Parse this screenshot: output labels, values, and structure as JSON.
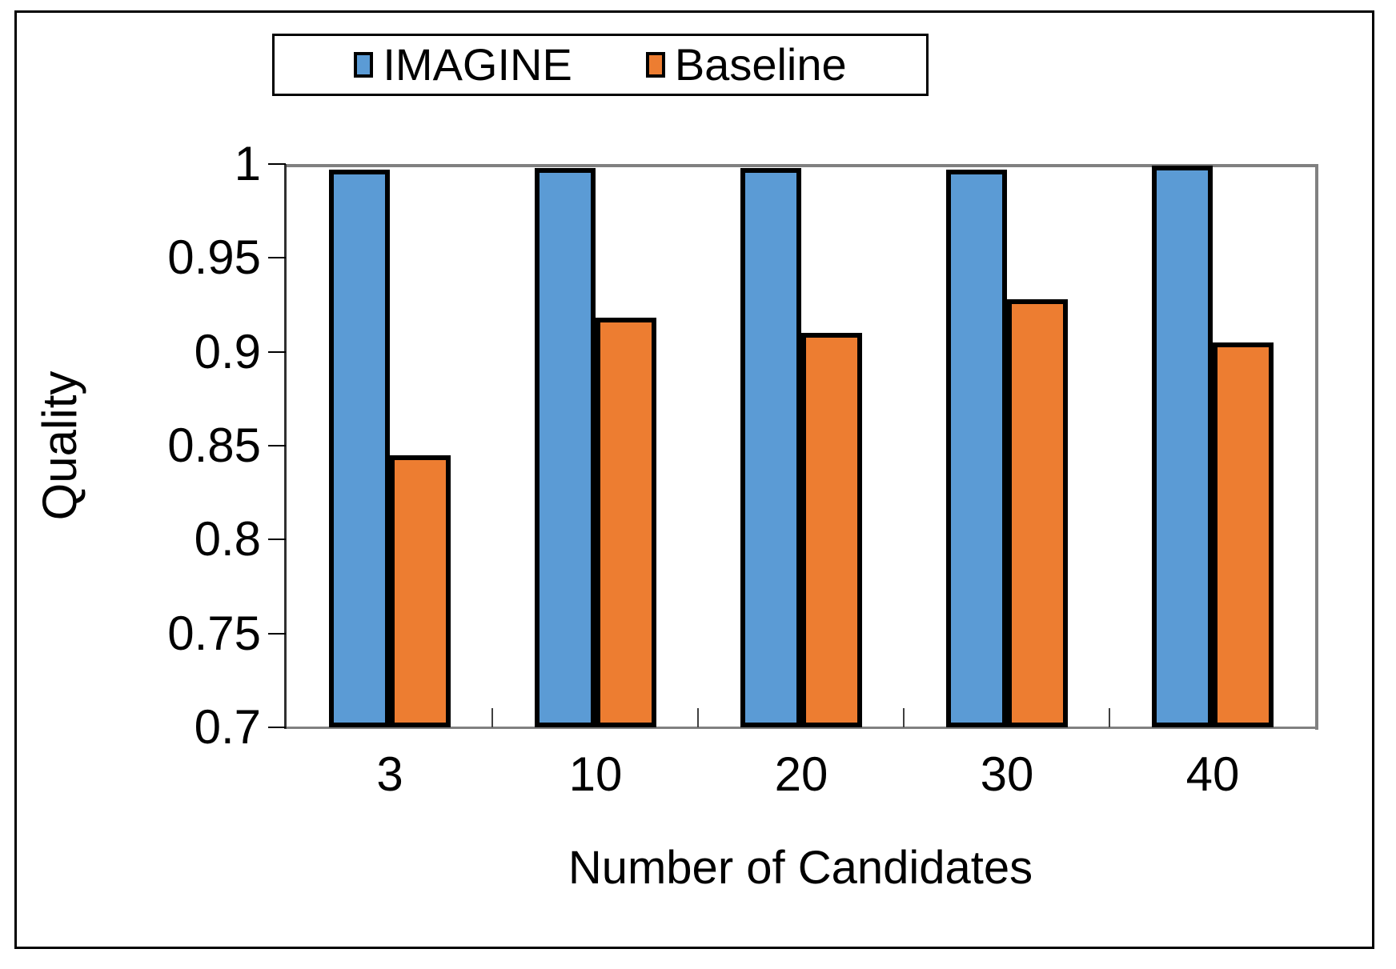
{
  "chart_data": {
    "type": "bar",
    "title": "",
    "categories": [
      "3",
      "10",
      "20",
      "30",
      "40"
    ],
    "series": [
      {
        "name": "IMAGINE",
        "color": "#5B9BD5",
        "values": [
          0.997,
          0.998,
          0.998,
          0.997,
          0.999
        ]
      },
      {
        "name": "Baseline",
        "color": "#ED7D31",
        "values": [
          0.845,
          0.918,
          0.91,
          0.928,
          0.905
        ]
      }
    ],
    "xlabel": "Number of Candidates",
    "ylabel": "Quality",
    "ylim": [
      0.7,
      1.0
    ],
    "ytick_values": [
      1,
      0.95,
      0.9,
      0.85,
      0.8,
      0.75,
      0.7
    ],
    "ytick_labels": [
      "1",
      "0.95",
      "0.9",
      "0.85",
      "0.8",
      "0.75",
      "0.7"
    ],
    "legend_position": "top",
    "grid": false,
    "bar_border_color": "#000000",
    "axis_border_color": "#808080"
  }
}
